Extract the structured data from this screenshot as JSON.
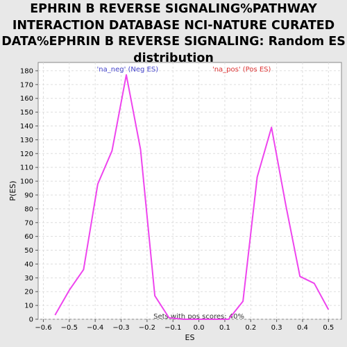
{
  "chart_data": {
    "type": "line",
    "title_lines": [
      "EPHRIN B REVERSE SIGNALING%PATHWAY",
      "INTERACTION DATABASE NCI-NATURE CURATED",
      "DATA%EPHRIN B REVERSE SIGNALING: Random ES",
      "distribution"
    ],
    "xlabel": "ES",
    "ylabel": "P(ES)",
    "xlim": [
      -0.62,
      0.55
    ],
    "ylim": [
      0,
      186
    ],
    "x_ticks": [
      -0.6,
      -0.5,
      -0.4,
      -0.3,
      -0.2,
      -0.1,
      0.0,
      0.1,
      0.2,
      0.3,
      0.4,
      0.5
    ],
    "x_tick_labels": [
      "−0.6",
      "−0.5",
      "−0.4",
      "−0.3",
      "−0.2",
      "−0.1",
      "0.0",
      "0.1",
      "0.2",
      "0.3",
      "0.4",
      "0.5"
    ],
    "y_ticks": [
      0,
      10,
      20,
      30,
      40,
      50,
      60,
      70,
      80,
      90,
      100,
      110,
      120,
      130,
      140,
      150,
      160,
      170,
      180
    ],
    "grid": true,
    "series": [
      {
        "color": "#ee44ee",
        "x": [
          -0.555,
          -0.5,
          -0.445,
          -0.39,
          -0.335,
          -0.28,
          -0.225,
          -0.17,
          -0.115,
          -0.06,
          0.0,
          0.06,
          0.115,
          0.17,
          0.225,
          0.28,
          0.335,
          0.39,
          0.445,
          0.5
        ],
        "y": [
          3,
          21,
          36,
          98,
          122,
          177,
          123,
          17,
          1,
          0,
          0,
          0,
          0,
          13,
          103,
          139,
          83,
          31,
          26,
          7
        ]
      }
    ],
    "annotations": {
      "neg_label": "'na_neg' (Neg ES)",
      "pos_label": "'na_pos' (Pos ES)",
      "neg_color": "#4444cc",
      "pos_color": "#dd3333",
      "footer": "Sets with pos scores: 40%"
    }
  }
}
